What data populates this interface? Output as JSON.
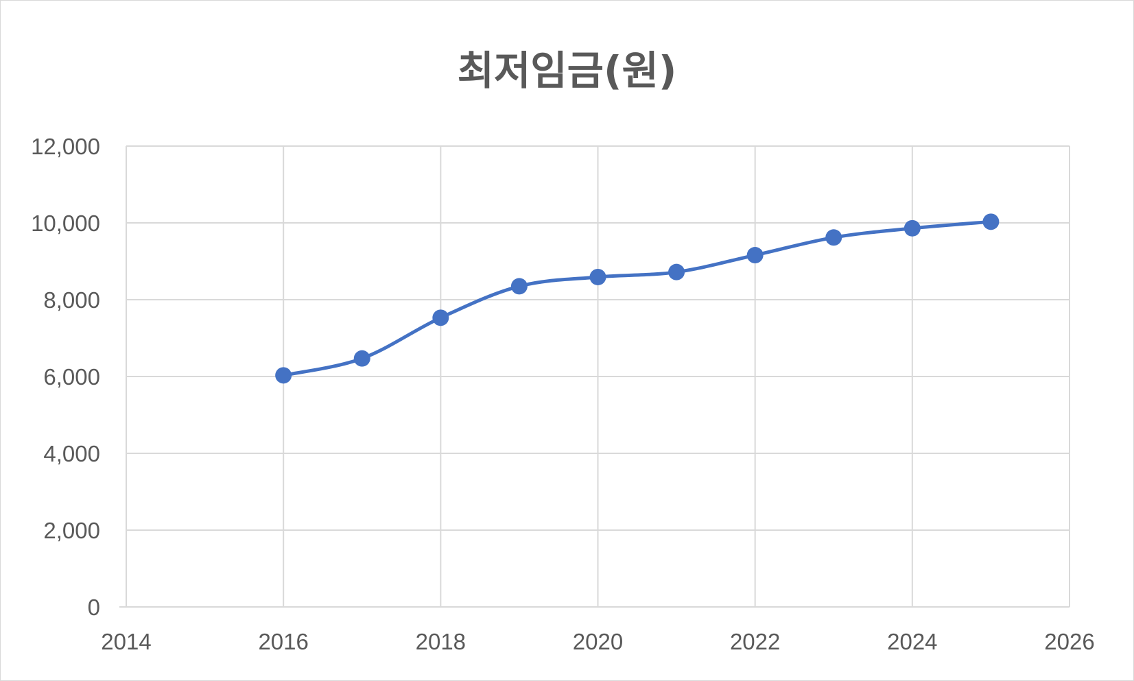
{
  "chart_data": {
    "type": "scatter",
    "title": "최저임금(원)",
    "x": [
      2016,
      2017,
      2018,
      2019,
      2020,
      2021,
      2022,
      2023,
      2024,
      2025
    ],
    "y": [
      6030,
      6470,
      7530,
      8350,
      8590,
      8720,
      9160,
      9620,
      9860,
      10030
    ],
    "smooth": true,
    "markers": true,
    "xlim": [
      2014,
      2026
    ],
    "ylim": [
      0,
      12000
    ],
    "xticks": [
      2014,
      2016,
      2018,
      2020,
      2022,
      2024,
      2026
    ],
    "yticks": [
      0,
      2000,
      4000,
      6000,
      8000,
      10000,
      12000
    ],
    "xtick_labels": [
      "2014",
      "2016",
      "2018",
      "2020",
      "2022",
      "2024",
      "2026"
    ],
    "ytick_labels": [
      "0",
      "2,000",
      "4,000",
      "6,000",
      "8,000",
      "10,000",
      "12,000"
    ],
    "grid": true,
    "series_color": "#4472C4",
    "grid_color": "#d9d9d9",
    "text_color": "#595959"
  }
}
